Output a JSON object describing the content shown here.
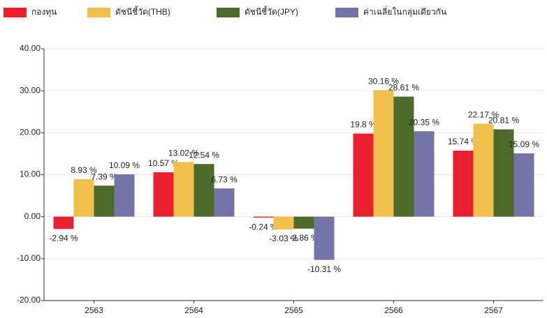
{
  "chart_data": {
    "type": "bar",
    "categories": [
      "2563",
      "2564",
      "2565",
      "2566",
      "2567"
    ],
    "series": [
      {
        "name": "กองทุน",
        "color": "#e8202f",
        "values": [
          -2.94,
          10.57,
          -0.24,
          19.8,
          15.74
        ],
        "value_labels": [
          "-2.94 %",
          "10.57 %",
          "-0.24 %",
          "19.8 %",
          "15.74 %"
        ]
      },
      {
        "name": "ดัชนีชี้วัด(THB)",
        "color": "#f2c04c",
        "values": [
          8.93,
          13.02,
          -3.03,
          30.16,
          22.17
        ],
        "value_labels": [
          "8.93 %",
          "13.02 %",
          "-3.03 %",
          "30.16 %",
          "22.17 %"
        ]
      },
      {
        "name": "ดัชนีชี้วัด(JPY)",
        "color": "#4e6b2c",
        "values": [
          7.39,
          12.54,
          -2.86,
          28.61,
          20.81
        ],
        "value_labels": [
          "7.39 %",
          "12.54 %",
          "-2.86 %",
          "28.61 %",
          "20.81 %"
        ]
      },
      {
        "name": "ค่าเฉลี่ยในกลุ่มเดียวกัน",
        "color": "#7474a8",
        "values": [
          10.09,
          6.73,
          -10.31,
          20.35,
          15.09
        ],
        "value_labels": [
          "10.09 %",
          "6.73 %",
          "-10.31 %",
          "20.35 %",
          "15.09 %"
        ]
      }
    ],
    "ylim": [
      -20,
      40
    ],
    "yticks": [
      {
        "value": -20,
        "label": "-20.00"
      },
      {
        "value": -10,
        "label": "-10.00"
      },
      {
        "value": 0,
        "label": "0.00"
      },
      {
        "value": 10,
        "label": "10.00"
      },
      {
        "value": 20,
        "label": "20.00"
      },
      {
        "value": 30,
        "label": "30.00"
      },
      {
        "value": 40,
        "label": "40.00"
      }
    ],
    "grid": true
  }
}
